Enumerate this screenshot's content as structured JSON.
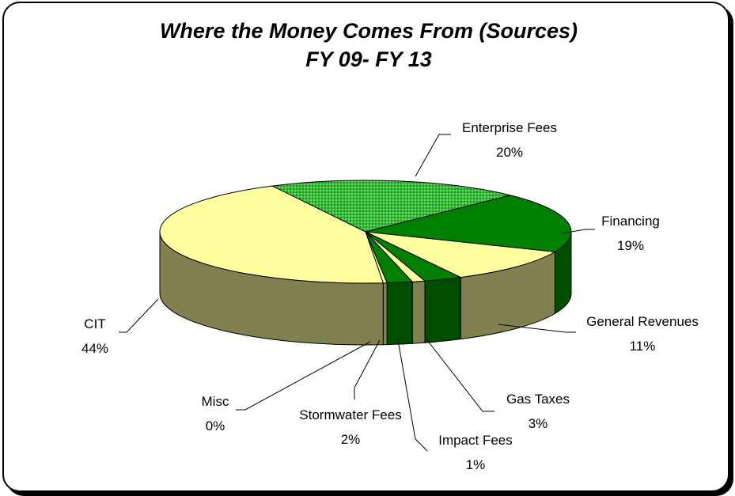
{
  "chart_data": {
    "type": "pie",
    "title": "Where the Money Comes From (Sources)",
    "subtitle": "FY 09- FY 13",
    "three_d": true,
    "legend": "none",
    "slices": [
      {
        "name": "Enterprise Fees",
        "percent_label": "20%",
        "value": 20,
        "color": "#33bb33",
        "side_color": "#22882a",
        "pattern": "dotted"
      },
      {
        "name": "Financing",
        "percent_label": "19%",
        "value": 19,
        "color": "#008000",
        "side_color": "#004d00",
        "pattern": "none"
      },
      {
        "name": "General Revenues",
        "percent_label": "11%",
        "value": 11,
        "color": "#ffffa0",
        "side_color": "#808050",
        "pattern": "none"
      },
      {
        "name": "Gas Taxes",
        "percent_label": "3%",
        "value": 3,
        "color": "#008000",
        "side_color": "#004d00",
        "pattern": "none"
      },
      {
        "name": "Impact Fees",
        "percent_label": "1%",
        "value": 1,
        "color": "#ffffa0",
        "side_color": "#808050",
        "pattern": "dotted"
      },
      {
        "name": "Stormwater Fees",
        "percent_label": "2%",
        "value": 2,
        "color": "#008000",
        "side_color": "#004d00",
        "pattern": "none"
      },
      {
        "name": "Misc",
        "percent_label": "0%",
        "value": 0.3,
        "color": "#ffffa0",
        "side_color": "#808050",
        "pattern": "none"
      },
      {
        "name": "CIT",
        "percent_label": "44%",
        "value": 44,
        "color": "#ffffa0",
        "side_color": "#808050",
        "pattern": "none"
      }
    ]
  }
}
